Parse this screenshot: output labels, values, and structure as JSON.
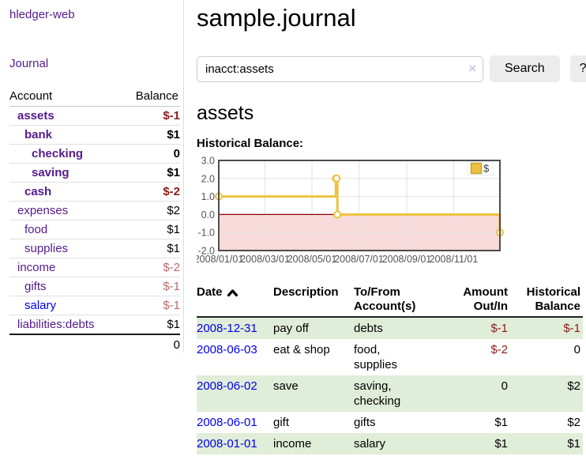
{
  "app_title": "hledger-web",
  "sidebar": {
    "journal_link": "Journal",
    "accounts": {
      "header_account": "Account",
      "header_balance": "Balance",
      "rows": [
        {
          "name": "assets",
          "balance": "$-1"
        },
        {
          "name": "bank",
          "balance": "$1"
        },
        {
          "name": "checking",
          "balance": "0"
        },
        {
          "name": "saving",
          "balance": "$1"
        },
        {
          "name": "cash",
          "balance": "$-2"
        },
        {
          "name": "expenses",
          "balance": "$2"
        },
        {
          "name": "food",
          "balance": "$1"
        },
        {
          "name": "supplies",
          "balance": "$1"
        },
        {
          "name": "income",
          "balance": "$-2"
        },
        {
          "name": "gifts",
          "balance": "$-1"
        },
        {
          "name": "salary",
          "balance": "$-1"
        },
        {
          "name": "liabilities:debts",
          "balance": "$1"
        }
      ],
      "total": "0"
    }
  },
  "main": {
    "title": "sample.journal",
    "search": {
      "value": "inacct:assets",
      "clear_icon": "×",
      "search_button": "Search",
      "help_button": "?"
    },
    "account_heading": "assets",
    "chart_label": "Historical Balance:",
    "register": {
      "headers": [
        {
          "line1": "Date",
          "line2": ""
        },
        {
          "line1": "Description",
          "line2": ""
        },
        {
          "line1": "To/From",
          "line2": "Account(s)"
        },
        {
          "line1": "Amount",
          "line2": "Out/In"
        },
        {
          "line1": "Historical",
          "line2": "Balance"
        }
      ],
      "rows": [
        {
          "date": "2008-12-31",
          "description": "pay off",
          "accounts": "debts",
          "amount": "$-1",
          "balance": "$-1"
        },
        {
          "date": "2008-06-03",
          "description": "eat & shop",
          "accounts": "food, supplies",
          "amount": "$-2",
          "balance": "0"
        },
        {
          "date": "2008-06-02",
          "description": "save",
          "accounts": "saving, checking",
          "amount": "0",
          "balance": "$2"
        },
        {
          "date": "2008-06-01",
          "description": "gift",
          "accounts": "gifts",
          "amount": "$1",
          "balance": "$2"
        },
        {
          "date": "2008-01-01",
          "description": "income",
          "accounts": "salary",
          "amount": "$1",
          "balance": "$1"
        }
      ]
    }
  },
  "colors": {
    "link_purple": "#551a8b",
    "link_blue": "#0000ee",
    "negative_strong": "#8b1b1b",
    "negative_soft": "#bb6a6a",
    "chart_line": "#EDC240",
    "zero_line": "#8b0000",
    "negative_region_fill": "#f8dada",
    "row_green": "#e0edd8",
    "button_gray": "#ececec"
  },
  "chart_data": {
    "type": "line",
    "title": "Historical Balance",
    "step": true,
    "x": [
      "2008-01-01",
      "2008-06-01",
      "2008-06-02",
      "2008-06-03",
      "2008-12-31"
    ],
    "values": [
      1,
      2,
      2,
      0,
      -1
    ],
    "x_ticks": [
      "2008/01/01",
      "2008/03/01",
      "2008/05/01",
      "2008/07/01",
      "2008/09/01",
      "2008/11/01"
    ],
    "y_ticks": [
      3,
      2,
      1,
      0,
      -1,
      -2
    ],
    "ylim": [
      -2,
      3
    ],
    "xrange": [
      "2008-01-01",
      "2008-12-31"
    ],
    "grid": true,
    "legend_position": "top-right",
    "legend": [
      {
        "label": "$",
        "color": "#EDC240"
      }
    ],
    "zero_line_color": "#8b0000",
    "negative_region_fill": "#f8dada"
  }
}
